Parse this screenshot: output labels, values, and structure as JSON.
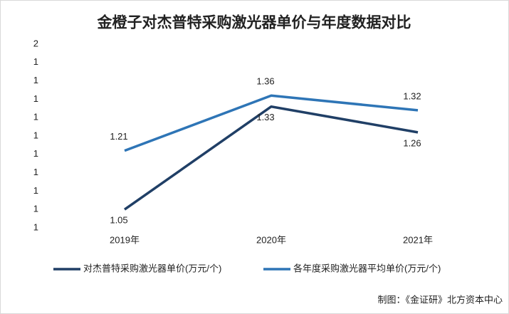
{
  "chart_data": {
    "type": "line",
    "title": "金橙子对杰普特采购激光器单价与年度数据对比",
    "categories": [
      "2019年",
      "2020年",
      "2021年"
    ],
    "series": [
      {
        "name": "对杰普特采购激光器单价(万元/个)",
        "color": "#203f66",
        "values": [
          1.05,
          1.33,
          1.26
        ]
      },
      {
        "name": "各年度采购激光器平均单价(万元/个)",
        "color": "#2e75b6",
        "values": [
          1.21,
          1.36,
          1.32
        ]
      }
    ],
    "ylim": [
      1,
      1.5
    ],
    "yticks": [
      1,
      {
        "value": 1.05,
        "label": "1"
      },
      {
        "value": 1.1,
        "label": "1"
      },
      {
        "value": 1.15,
        "label": "1"
      },
      {
        "value": 1.2,
        "label": "1"
      },
      {
        "value": 1.25,
        "label": "1"
      },
      {
        "value": 1.3,
        "label": "1"
      },
      {
        "value": 1.35,
        "label": "1"
      },
      {
        "value": 1.4,
        "label": "1"
      },
      {
        "value": 1.45,
        "label": "1"
      },
      {
        "value": 1.5,
        "label": "2"
      }
    ],
    "grid": false,
    "legend": "bottom",
    "source": "制图：《金证研》北方资本中心"
  }
}
